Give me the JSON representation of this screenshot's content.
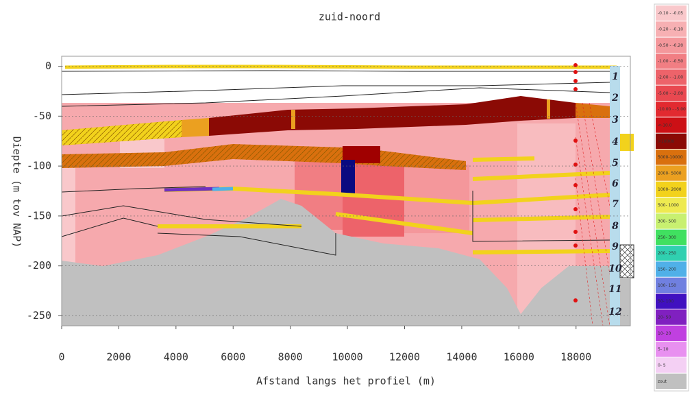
{
  "chart_data": {
    "type": "cross-section",
    "title": "zuid-noord",
    "x_label": "Afstand langs het profiel (m)",
    "y_label": "Diepte (m tov NAP)",
    "xlim": [
      0,
      19900
    ],
    "ylim": [
      -260,
      10
    ],
    "xticks": [
      0,
      2000,
      4000,
      6000,
      8000,
      10000,
      12000,
      14000,
      16000,
      18000
    ],
    "yticks": [
      0,
      -50,
      -100,
      -150,
      -200,
      -250
    ],
    "grid": true,
    "layers": [
      "1",
      "2",
      "3",
      "4",
      "5",
      "6",
      "7",
      "8",
      "9",
      "10",
      "11",
      "12"
    ],
    "legend": [
      {
        "label": "-0.10 - -0.05",
        "color": "#f9c8cb"
      },
      {
        "label": "-0.20 - -0.10",
        "color": "#f7b0b3"
      },
      {
        "label": "-0.50 - -0.20",
        "color": "#f4979b"
      },
      {
        "label": "-1.00 - -0.50",
        "color": "#f17e83"
      },
      {
        "label": "-2.00 - -1.00",
        "color": "#ed636a"
      },
      {
        "label": "-5.00 - -2.00",
        "color": "#e94850"
      },
      {
        "label": "-10.00 - -5.00",
        "color": "#e22a30"
      },
      {
        "label": "<-10.0",
        "color": "#cc1015"
      },
      {
        "label": ">10000",
        "color": "#8b0a05"
      },
      {
        "label": "5000-10000",
        "color": "#d9700e"
      },
      {
        "label": "2000- 5000",
        "color": "#eba020"
      },
      {
        "label": "1000- 2000",
        "color": "#f2d21c"
      },
      {
        "label": "500- 1000",
        "color": "#eeea50"
      },
      {
        "label": "300- 500",
        "color": "#c8f070"
      },
      {
        "label": "250- 300",
        "color": "#40e060"
      },
      {
        "label": "200- 250",
        "color": "#30d0b0"
      },
      {
        "label": "150- 200",
        "color": "#50b0e8"
      },
      {
        "label": "100- 150",
        "color": "#7080e0"
      },
      {
        "label": "50- 100",
        "color": "#4010c0"
      },
      {
        "label": "20- 50",
        "color": "#8020c0"
      },
      {
        "label": "10- 20",
        "color": "#c040e0"
      },
      {
        "label": "5- 10",
        "color": "#e890f0"
      },
      {
        "label": "0- 5",
        "color": "#f4d0f4"
      },
      {
        "label": "zout",
        "color": "#c0c0c0"
      }
    ]
  }
}
